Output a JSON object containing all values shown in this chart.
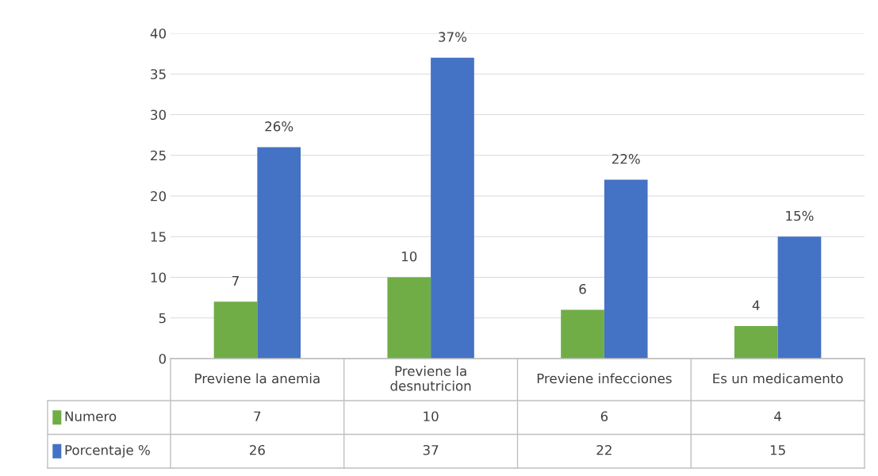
{
  "chart_data": [
    {
      "type": "bar",
      "categories": [
        null,
        null,
        null,
        null
      ],
      "series": [
        {
          "color": "#70ad47",
          "values": [
            7,
            10,
            6,
            4
          ],
          "value_labels": [
            "7",
            "10",
            "6",
            "4"
          ]
        },
        {
          "color": "#4472c4",
          "values": [
            26,
            37,
            22,
            15
          ],
          "value_labels": [
            "26%",
            "37%",
            "22%",
            "15%"
          ]
        }
      ],
      "ylim": [
        0,
        40
      ],
      "yticks": [
        0,
        5,
        10,
        15,
        20,
        25,
        30,
        35,
        40
      ],
      "grid": "y"
    },
    {
      "type": "other",
      "categories": [
        "Previene la anemia",
        "Previene la\ndesnutricion",
        "Previene infecciones",
        "Es un medicamento"
      ],
      "series": [
        {
          "name": "Numero",
          "color": "#70ad47",
          "values": [
            7,
            10,
            6,
            4
          ]
        },
        {
          "name": "Porcentaje %",
          "color": "#4472c4",
          "values": [
            26,
            37,
            22,
            15
          ]
        }
      ],
      "legend": "left",
      "data_labels": true
    }
  ]
}
